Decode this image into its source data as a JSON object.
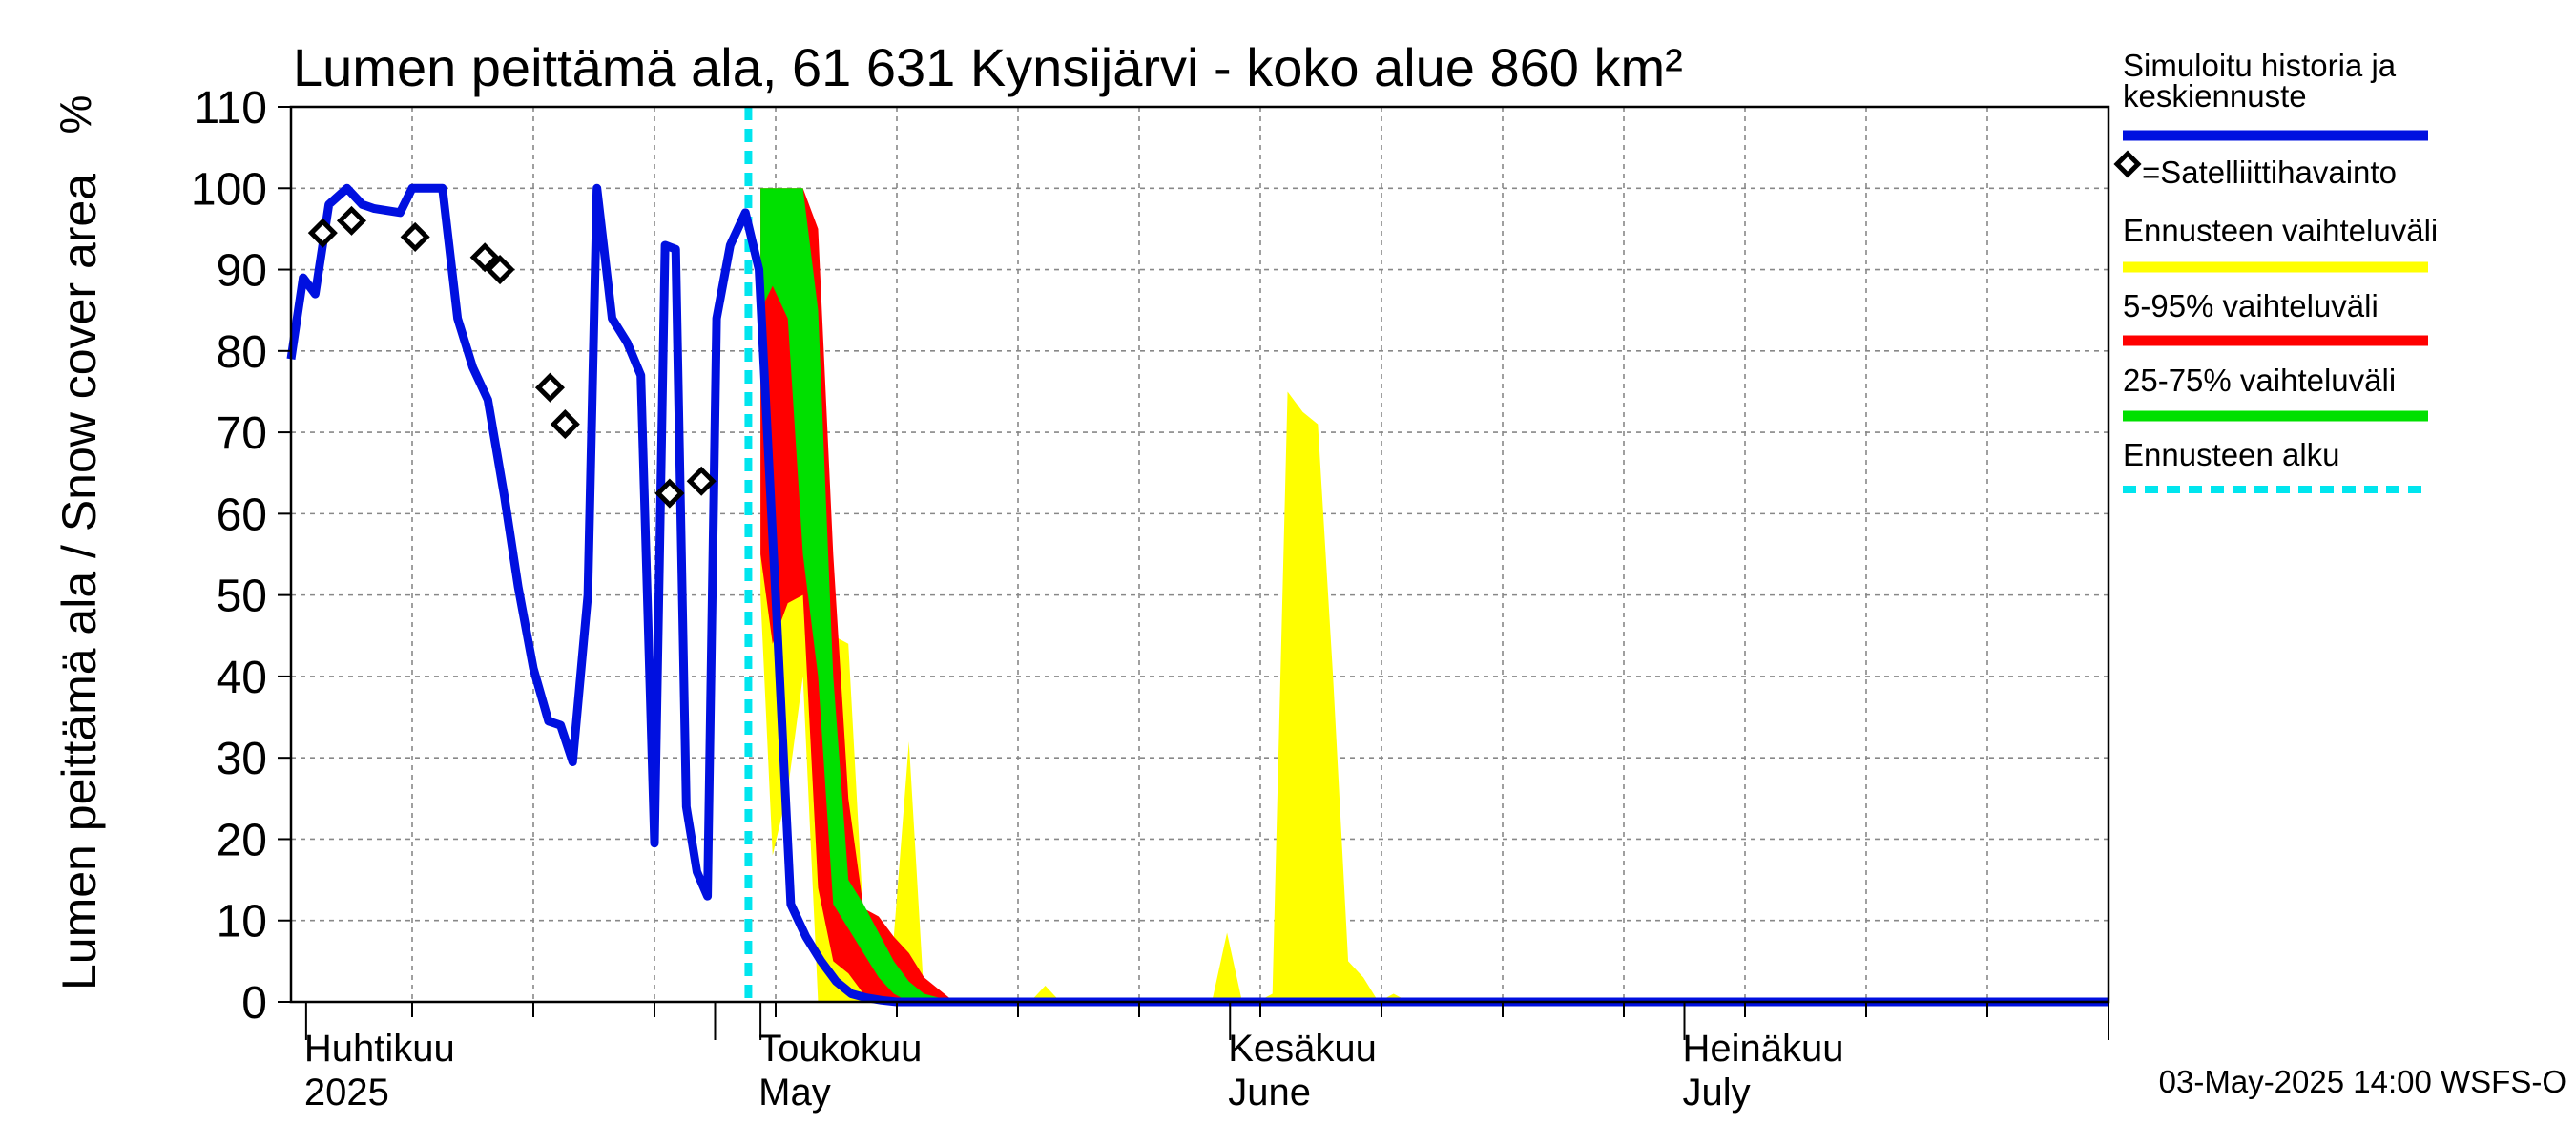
{
  "chart_data": {
    "type": "area",
    "title": "Lumen peittämä ala, 61 631 Kynsijärvi - koko alue 860 km²",
    "ylabel": "Lumen peittämä ala / Snow cover area",
    "yunit": "%",
    "ylim": [
      0,
      110
    ],
    "yticks": [
      0,
      10,
      20,
      30,
      40,
      50,
      60,
      70,
      80,
      90,
      100,
      110
    ],
    "x_unit": "days since 2025-03-31",
    "xlim": [
      0,
      120
    ],
    "month_labels": [
      {
        "fi": "Huhtikuu",
        "en": "2025",
        "day": 1
      },
      {
        "fi": "Toukokuu",
        "en": "May",
        "day": 31
      },
      {
        "fi": "Kesäkuu",
        "en": "June",
        "day": 62
      },
      {
        "fi": "Heinäkuu",
        "en": "July",
        "day": 92
      }
    ],
    "month_boundaries": [
      1,
      28,
      31,
      62,
      92,
      120
    ],
    "grid": true,
    "forecast_start_day": 30.2,
    "series": [
      {
        "name": "Simuloitu historia ja keskiennuste",
        "color": "#0010e0",
        "x": [
          0,
          0.8,
          1.6,
          2.5,
          3.7,
          4.7,
          5.5,
          7.2,
          8.0,
          9.0,
          10.0,
          11.0,
          12.0,
          13.0,
          14.1,
          15.0,
          16.0,
          17.0,
          17.8,
          18.6,
          19.6,
          20.2,
          21.2,
          22.2,
          23.1,
          24.0,
          24.7,
          25.4,
          26.1,
          26.8,
          27.5,
          28.1,
          29.0,
          30.0,
          30.9,
          32.0,
          33.0,
          34.0,
          35.0,
          36.0,
          37.0,
          38.0,
          39.0,
          40.0,
          41.0,
          42.0,
          43.0,
          45.0,
          120
        ],
        "values": [
          79,
          89,
          87,
          98,
          100,
          98,
          97.5,
          97,
          100,
          100,
          100,
          84,
          78,
          74,
          62,
          51,
          41,
          34.5,
          34,
          29.5,
          50,
          100,
          84,
          81,
          77,
          19.5,
          93,
          92.5,
          24,
          16,
          13,
          84,
          93,
          97,
          90,
          50,
          12,
          8,
          5,
          2.5,
          1,
          0.5,
          0.2,
          0,
          0,
          0,
          0,
          0,
          0
        ]
      },
      {
        "name": "=Satelliittihavainto",
        "type": "scatter",
        "x": [
          2.1,
          4.0,
          8.2,
          12.8,
          13.8,
          17.1,
          18.1,
          25.0,
          27.1
        ],
        "values": [
          94.5,
          96,
          94,
          91.5,
          90,
          75.5,
          71,
          62.5,
          64
        ]
      },
      {
        "name": "Ennusteen vaihteluväli",
        "color": "#ffff00",
        "type": "band",
        "x": [
          31,
          31.8,
          32.8,
          33.8,
          34.8,
          35.8,
          36.8,
          37.8,
          38.8,
          39.8,
          40.8,
          41.8,
          42.8,
          43.8,
          44.8,
          45.8,
          46.8,
          47.8,
          48.8,
          49.8,
          50.8,
          51.8,
          52.8,
          53.8,
          54.8,
          55.8,
          56.8,
          57.8,
          58.8,
          59.8,
          60.8,
          61.8,
          62.8,
          63.8,
          64.8,
          65.8,
          66.8,
          67.8,
          68.8,
          69.8,
          70.8,
          71.8,
          72.8,
          73.8,
          74.8,
          75.8,
          76.8,
          77.8
        ],
        "upper": [
          100,
          100,
          100,
          100,
          75,
          45,
          44,
          10,
          10,
          8,
          32,
          0.5,
          0,
          0,
          0,
          0,
          0,
          0,
          0,
          2,
          0,
          0,
          0,
          0,
          0,
          0,
          0,
          0,
          0,
          0,
          0,
          8.5,
          0,
          0,
          1,
          75,
          72.5,
          71,
          40,
          5,
          3,
          0,
          1,
          0,
          0,
          0,
          0,
          0
        ],
        "lower": [
          50,
          18,
          26,
          40,
          0,
          0,
          0,
          0,
          0,
          0,
          0,
          0,
          0,
          0,
          0,
          0,
          0,
          0,
          0,
          0,
          0,
          0,
          0,
          0,
          0,
          0,
          0,
          0,
          0,
          0,
          0,
          0,
          0,
          0,
          0,
          0,
          0,
          0,
          0,
          0,
          0,
          0,
          0,
          0,
          0,
          0,
          0,
          0
        ]
      },
      {
        "name": "5-95% vaihteluväli",
        "color": "#ff0000",
        "type": "band",
        "x": [
          31,
          31.8,
          32.8,
          33.8,
          34.8,
          35.8,
          36.8,
          37.8,
          38.8,
          39.8,
          40.8,
          41.8,
          42.8,
          43.8,
          44.8
        ],
        "upper": [
          100,
          100,
          100,
          100,
          95,
          55,
          25,
          11.5,
          10.5,
          8,
          6,
          3,
          1.5,
          0,
          0
        ],
        "lower": [
          55,
          44,
          49,
          50,
          14,
          5,
          3.5,
          1,
          0,
          0,
          0,
          0,
          0,
          0,
          0
        ]
      },
      {
        "name": "25-75% vaihteluväli",
        "color": "#00e000",
        "type": "band",
        "x": [
          31,
          31.8,
          32.8,
          33.8,
          34.8,
          35.8,
          36.8,
          37.8,
          38.8,
          39.8,
          40.8,
          41.8,
          42.8,
          43.8
        ],
        "upper": [
          100,
          100,
          100,
          100,
          85,
          40,
          15,
          12,
          8.5,
          5,
          2.5,
          1,
          0.5,
          0
        ],
        "lower": [
          85,
          88,
          84,
          55,
          40,
          12,
          9,
          6,
          3,
          1,
          0,
          0,
          0,
          0
        ]
      },
      {
        "name": "Ennusteen alku",
        "color": "#00e5ee",
        "type": "vline",
        "x": 30.2
      }
    ]
  },
  "legend": [
    {
      "label": "Simuloitu historia ja",
      "label2": "keskiennuste",
      "color": "#0010e0",
      "kind": "line"
    },
    {
      "label": "=Satelliittihavainto",
      "kind": "marker"
    },
    {
      "label": "Ennusteen vaihteluväli",
      "color": "#ffff00",
      "kind": "line"
    },
    {
      "label": "5-95% vaihteluväli",
      "color": "#ff0000",
      "kind": "line"
    },
    {
      "label": "25-75% vaihteluväli",
      "color": "#00e000",
      "kind": "line"
    },
    {
      "label": "Ennusteen alku",
      "color": "#00e5ee",
      "kind": "dashed"
    }
  ],
  "footer": "03-May-2025 14:00 WSFS-O"
}
